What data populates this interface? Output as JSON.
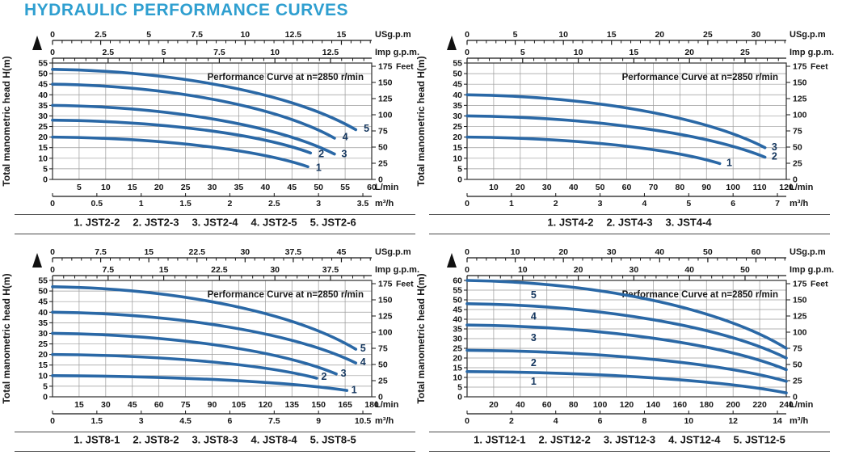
{
  "title": "HYDRAULIC PERFORMANCE CURVES",
  "colors": {
    "title": "#2f9fd0",
    "curve": "#2a68a6",
    "curve_label": "#14365e",
    "grid": "#9a9a9a",
    "border": "#3c3c3c",
    "text": "#161616",
    "rule": "#4a4a4a"
  },
  "chart_data": [
    {
      "type": "line",
      "id": "jst2",
      "title": "Performance Curve at n=2850 r/min",
      "ylabel": "Total manometric head H(m)",
      "y_right_first": "175",
      "y_right_unit": "Feet",
      "x_unit_top1": "USg.p.m",
      "x_unit_top2": "Imp g.p.m.",
      "x_unit_bottom1": "L/min",
      "x_unit_bottom2": "m³/h",
      "head_max": 55,
      "head_step": 5,
      "lmin_max": 60,
      "us_ticks": [
        0,
        2.5,
        5,
        7.5,
        10,
        12.5,
        15
      ],
      "imp_ticks": [
        0,
        2.5,
        5,
        7.5,
        10,
        12.5
      ],
      "lmin_ticks": [
        5,
        10,
        15,
        20,
        25,
        30,
        35,
        40,
        45,
        50,
        55,
        60
      ],
      "m3h_ticks": [
        0,
        0.5,
        1,
        1.5,
        2,
        2.5,
        3,
        3.5
      ],
      "feet_ticks": [
        175,
        150,
        125,
        100,
        75,
        50,
        25,
        0
      ],
      "series": [
        {
          "label": "1",
          "model": "JST2-2",
          "start": [
            0,
            20
          ],
          "end": [
            48,
            6
          ],
          "label_at": [
            49.5,
            5.5
          ]
        },
        {
          "label": "2",
          "model": "JST2-3",
          "start": [
            0,
            28
          ],
          "end": [
            48.5,
            12.5
          ],
          "label_at": [
            50,
            12
          ]
        },
        {
          "label": "3",
          "model": "JST2-4",
          "start": [
            0,
            35
          ],
          "end": [
            53,
            12
          ],
          "label_at": [
            54.3,
            12
          ]
        },
        {
          "label": "4",
          "model": "JST2-5",
          "start": [
            0,
            45
          ],
          "end": [
            53,
            19.5
          ],
          "label_at": [
            54.5,
            20
          ]
        },
        {
          "label": "5",
          "model": "JST2-6",
          "start": [
            0,
            52
          ],
          "end": [
            57,
            23.5
          ],
          "label_at": [
            58.5,
            24
          ]
        }
      ],
      "legend": [
        "1. JST2-2",
        "2. JST2-3",
        "3. JST2-4",
        "4. JST2-5",
        "5. JST2-6"
      ]
    },
    {
      "type": "line",
      "id": "jst4",
      "title": "Performance Curve at n=2850 r/min",
      "ylabel": "Total manometric head H(m)",
      "y_right_first": "175",
      "y_right_unit": "Feet",
      "x_unit_top1": "USg.p.m",
      "x_unit_top2": "Imp g.p.m.",
      "x_unit_bottom1": "L/min",
      "x_unit_bottom2": "m³/h",
      "head_max": 55,
      "head_step": 5,
      "lmin_max": 120,
      "us_ticks": [
        0,
        5,
        10,
        15,
        20,
        25,
        30
      ],
      "imp_ticks": [
        0,
        5,
        10,
        15,
        20,
        25
      ],
      "lmin_ticks": [
        10,
        20,
        30,
        40,
        50,
        60,
        70,
        80,
        90,
        100,
        110,
        120
      ],
      "m3h_ticks": [
        0,
        1,
        2,
        3,
        4,
        5,
        6,
        7
      ],
      "feet_ticks": [
        175,
        150,
        125,
        100,
        75,
        50,
        25,
        0
      ],
      "series": [
        {
          "label": "1",
          "model": "JST4-2",
          "start": [
            0,
            20
          ],
          "end": [
            95,
            7.5
          ],
          "label_at": [
            97.5,
            7.8
          ]
        },
        {
          "label": "2",
          "model": "JST4-3",
          "start": [
            0,
            30
          ],
          "end": [
            112,
            10.5
          ],
          "label_at": [
            114.5,
            10.8
          ]
        },
        {
          "label": "3",
          "model": "JST4-4",
          "start": [
            0,
            40
          ],
          "end": [
            112,
            15
          ],
          "label_at": [
            114.5,
            15.3
          ]
        }
      ],
      "legend": [
        "1. JST4-2",
        "2. JST4-3",
        "3. JST4-4"
      ]
    },
    {
      "type": "line",
      "id": "jst8",
      "title": "Performance Curve at n=2850 r/min",
      "ylabel": "Total manometric head H(m)",
      "y_right_first": "175",
      "y_right_unit": "Feet",
      "x_unit_top1": "USg.p.m",
      "x_unit_top2": "Imp g.p.m.",
      "x_unit_bottom1": "L/min",
      "x_unit_bottom2": "m³/h",
      "head_max": 55,
      "head_step": 5,
      "lmin_max": 180,
      "us_ticks": [
        0,
        7.5,
        15,
        22.5,
        30,
        37.5,
        45
      ],
      "imp_ticks": [
        0,
        7.5,
        15,
        22.5,
        30,
        37.5
      ],
      "lmin_ticks": [
        15,
        30,
        45,
        60,
        75,
        90,
        105,
        120,
        135,
        150,
        165,
        180
      ],
      "m3h_ticks": [
        0,
        1.5,
        3,
        4.5,
        6,
        7.5,
        9,
        10.5
      ],
      "feet_ticks": [
        175,
        150,
        125,
        100,
        75,
        50,
        25,
        0
      ],
      "series": [
        {
          "label": "1",
          "model": "JST8-1",
          "start": [
            0,
            10
          ],
          "end": [
            166,
            3
          ],
          "label_at": [
            168.5,
            3.2
          ]
        },
        {
          "label": "2",
          "model": "JST8-2",
          "start": [
            0,
            20
          ],
          "end": [
            149,
            8.8
          ],
          "label_at": [
            151.5,
            9.5
          ]
        },
        {
          "label": "3",
          "model": "JST8-3",
          "start": [
            0,
            30
          ],
          "end": [
            160,
            10.8
          ],
          "label_at": [
            162.5,
            11
          ]
        },
        {
          "label": "4",
          "model": "JST8-4",
          "start": [
            0,
            40
          ],
          "end": [
            171,
            16
          ],
          "label_at": [
            173.5,
            16.5
          ]
        },
        {
          "label": "5",
          "model": "JST8-5",
          "start": [
            0,
            52
          ],
          "end": [
            171,
            22.5
          ],
          "label_at": [
            173.5,
            23
          ]
        }
      ],
      "legend": [
        "1. JST8-1",
        "2. JST8-2",
        "3. JST8-3",
        "4. JST8-4",
        "5. JST8-5"
      ]
    },
    {
      "type": "line",
      "id": "jst12",
      "title": "Performance Curve at n=2850 r/min",
      "ylabel": "Total manometric head H(m)",
      "y_right_first": "175",
      "y_right_unit": "Feet",
      "x_unit_top1": "USg.p.m",
      "x_unit_top2": "Imp g.p.m.",
      "x_unit_bottom1": "L/min",
      "x_unit_bottom2": "m³/h",
      "head_max": 60,
      "head_step": 5,
      "lmin_max": 240,
      "us_ticks": [
        0,
        10,
        20,
        30,
        40,
        50,
        60
      ],
      "imp_ticks": [
        0,
        10,
        20,
        30,
        40,
        50
      ],
      "lmin_ticks": [
        20,
        40,
        60,
        80,
        100,
        120,
        140,
        160,
        180,
        200,
        220,
        240
      ],
      "m3h_ticks": [
        0,
        2,
        4,
        6,
        8,
        10,
        12,
        14
      ],
      "feet_ticks": [
        175,
        150,
        125,
        100,
        75,
        50,
        25,
        0
      ],
      "series": [
        {
          "label": "1",
          "model": "JST12-1",
          "start": [
            0,
            13
          ],
          "end": [
            240,
            2
          ],
          "label_at": [
            50,
            8
          ],
          "label_inline": true
        },
        {
          "label": "2",
          "model": "JST12-2",
          "start": [
            0,
            24
          ],
          "end": [
            240,
            8
          ],
          "label_at": [
            50,
            17.5
          ],
          "label_inline": true
        },
        {
          "label": "3",
          "model": "JST12-3",
          "start": [
            0,
            37
          ],
          "end": [
            240,
            14
          ],
          "label_at": [
            50,
            30.5
          ],
          "label_inline": true
        },
        {
          "label": "4",
          "model": "JST12-4",
          "start": [
            0,
            48
          ],
          "end": [
            240,
            20
          ],
          "label_at": [
            50,
            41.5
          ],
          "label_inline": true
        },
        {
          "label": "5",
          "model": "JST12-5",
          "start": [
            0,
            60
          ],
          "end": [
            240,
            25
          ],
          "label_at": [
            50,
            52.5
          ],
          "label_inline": true
        }
      ],
      "legend": [
        "1. JST12-1",
        "2. JST12-2",
        "3. JST12-3",
        "4. JST12-4",
        "5. JST12-5"
      ]
    }
  ]
}
